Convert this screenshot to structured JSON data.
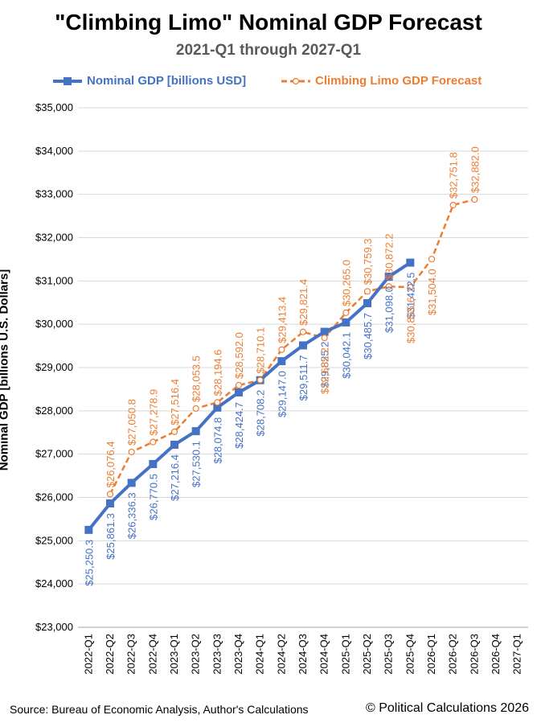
{
  "chart_data": {
    "type": "line",
    "title": "\"Climbing Limo\" Nominal GDP Forecast",
    "subtitle": "2021-Q1 through 2027-Q1",
    "xlabel": "",
    "ylabel": "Nominal GDP [billions U.S. Dollars]",
    "ylim": [
      23000,
      35000
    ],
    "yticks": [
      "$23,000",
      "$24,000",
      "$25,000",
      "$26,000",
      "$27,000",
      "$28,000",
      "$29,000",
      "$30,000",
      "$31,000",
      "$32,000",
      "$33,000",
      "$34,000",
      "$35,000"
    ],
    "categories": [
      "2022-Q1",
      "2022-Q2",
      "2022-Q3",
      "2022-Q4",
      "2023-Q1",
      "2023-Q2",
      "2023-Q3",
      "2023-Q4",
      "2024-Q1",
      "2024-Q2",
      "2024-Q3",
      "2024-Q4",
      "2025-Q1",
      "2025-Q2",
      "2025-Q3",
      "2025-Q4",
      "2026-Q1",
      "2026-Q2",
      "2026-Q3",
      "2026-Q4",
      "2027-Q1"
    ],
    "grid": true,
    "legend": "top",
    "series": [
      {
        "name": "Nominal GDP [billions USD]",
        "color": "#4472C4",
        "style": "solid-square",
        "values": [
          25250.3,
          25861.3,
          26336.3,
          26770.5,
          27216.4,
          27530.1,
          28074.8,
          28424.7,
          28708.2,
          29147.0,
          29511.7,
          29825.2,
          30042.1,
          30485.7,
          31098.0,
          31422.5,
          null,
          null,
          null,
          null,
          null
        ],
        "labels": [
          "$25,250.3",
          "$25,861.3",
          "$26,336.3",
          "$26,770.5",
          "$27,216.4",
          "$27,530.1",
          "$28,074.8",
          "$28,424.7",
          "$28,708.2",
          "$29,147.0",
          "$29,511.7",
          "$29,825.2",
          "$30,042.1",
          "$30,485.7",
          "$31,098.0",
          "$31,422.5",
          null,
          null,
          null,
          null,
          null
        ]
      },
      {
        "name": "Climbing Limo GDP Forecast",
        "color": "#ED7D31",
        "style": "dashed-circle",
        "values": [
          null,
          26076.4,
          27050.8,
          27278.9,
          27516.4,
          28053.5,
          28194.6,
          28592.0,
          28710.1,
          29413.4,
          29821.4,
          29685.2,
          30265.0,
          30759.3,
          30872.2,
          30855.6,
          31504.0,
          32751.8,
          32882.0,
          null,
          null
        ],
        "labels": [
          null,
          "$26,076.4",
          "$27,050.8",
          "$27,278.9",
          "$27,516.4",
          "$28,053.5",
          "$28,194.6",
          "$28,592.0",
          "$28,710.1",
          "$29,413.4",
          "$29,821.4",
          "$29,685.2",
          "$30,265.0",
          "$30,759.3",
          "$30,872.2",
          "$30,855.6",
          "$31,504.0",
          "$32,751.8",
          "$32,882.0",
          null,
          null
        ]
      }
    ]
  },
  "footer": {
    "source": "Source: Bureau of Economic Analysis, Author's Calculations",
    "credit": "© Political Calculations 2026"
  }
}
